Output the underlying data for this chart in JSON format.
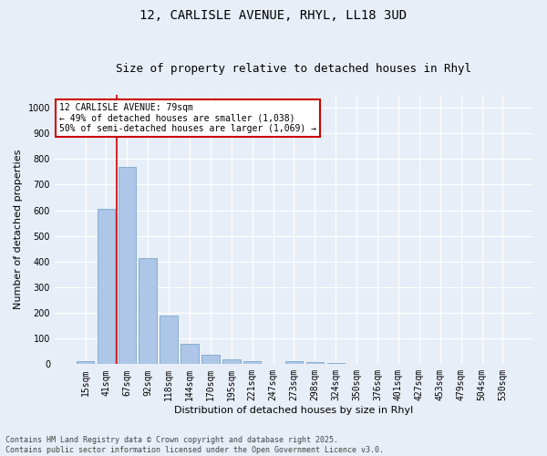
{
  "title": "12, CARLISLE AVENUE, RHYL, LL18 3UD",
  "subtitle": "Size of property relative to detached houses in Rhyl",
  "xlabel": "Distribution of detached houses by size in Rhyl",
  "ylabel": "Number of detached properties",
  "categories": [
    "15sqm",
    "41sqm",
    "67sqm",
    "92sqm",
    "118sqm",
    "144sqm",
    "170sqm",
    "195sqm",
    "221sqm",
    "247sqm",
    "273sqm",
    "298sqm",
    "324sqm",
    "350sqm",
    "376sqm",
    "401sqm",
    "427sqm",
    "453sqm",
    "479sqm",
    "504sqm",
    "530sqm"
  ],
  "values": [
    13,
    605,
    770,
    413,
    191,
    79,
    37,
    18,
    13,
    0,
    11,
    10,
    6,
    0,
    0,
    0,
    0,
    0,
    0,
    0,
    0
  ],
  "bar_color": "#aec6e8",
  "bar_edge_color": "#6a9ec8",
  "vline_x_index": 2,
  "vline_color": "#cc0000",
  "annotation_text": "12 CARLISLE AVENUE: 79sqm\n← 49% of detached houses are smaller (1,038)\n50% of semi-detached houses are larger (1,069) →",
  "annotation_box_color": "#ffffff",
  "annotation_box_edge": "#cc0000",
  "ylim": [
    0,
    1050
  ],
  "yticks": [
    0,
    100,
    200,
    300,
    400,
    500,
    600,
    700,
    800,
    900,
    1000
  ],
  "bg_color": "#e8eef7",
  "grid_color": "#ffffff",
  "footer_text": "Contains HM Land Registry data © Crown copyright and database right 2025.\nContains public sector information licensed under the Open Government Licence v3.0.",
  "title_fontsize": 10,
  "subtitle_fontsize": 9,
  "xlabel_fontsize": 8,
  "ylabel_fontsize": 8,
  "tick_fontsize": 7,
  "annotation_fontsize": 7,
  "footer_fontsize": 6
}
